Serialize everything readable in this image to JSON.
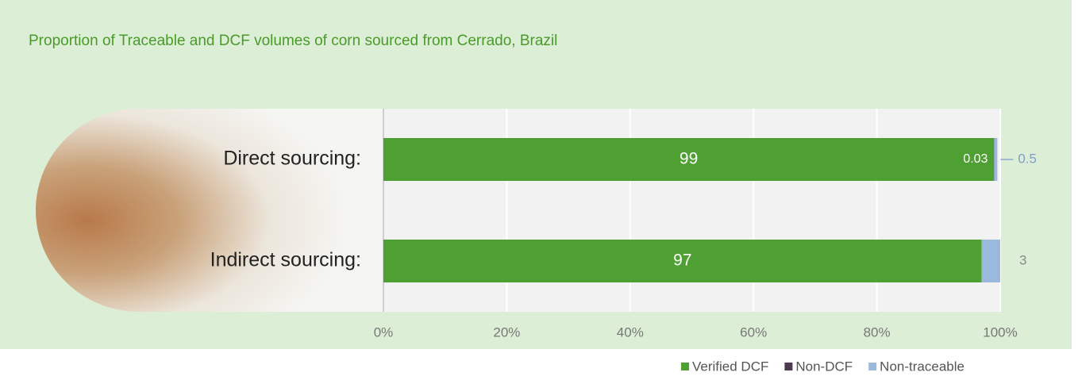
{
  "chart_data": {
    "type": "stacked-bar-horizontal",
    "title": "Proportion of Traceable and DCF volumes of corn sourced from Cerrado, Brazil",
    "categories": [
      "Direct sourcing:",
      "Indirect sourcing:"
    ],
    "series": [
      {
        "name": "Verified DCF",
        "color": "#4fa032",
        "values": [
          99,
          97
        ]
      },
      {
        "name": "Non-DCF",
        "color": "#4b3a50",
        "values": [
          0.03,
          0
        ]
      },
      {
        "name": "Non-traceable",
        "color": "#9bb9dc",
        "values": [
          0.5,
          3
        ]
      }
    ],
    "xlim": [
      0,
      100
    ],
    "xticks": [
      {
        "value": 0,
        "label": "0%"
      },
      {
        "value": 20,
        "label": "20%"
      },
      {
        "value": 40,
        "label": "40%"
      },
      {
        "value": 60,
        "label": "60%"
      },
      {
        "value": 80,
        "label": "80%"
      },
      {
        "value": 100,
        "label": "100%"
      }
    ],
    "grid": true,
    "legend": "bottom-right"
  }
}
